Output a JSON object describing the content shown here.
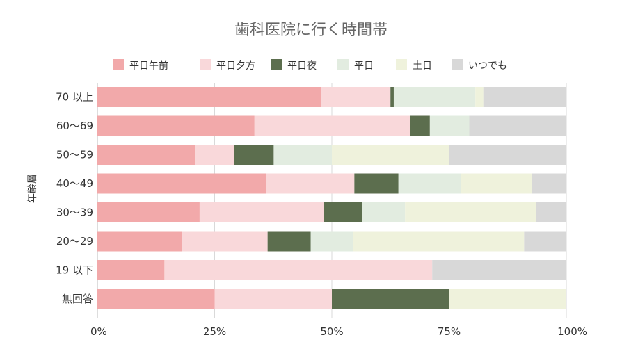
{
  "chart_data": {
    "type": "bar",
    "orientation": "horizontal",
    "stacked": true,
    "title": "歯科医院に行く時間帯",
    "ylabel": "年齢層",
    "xlabel": "",
    "xlim": [
      0,
      100
    ],
    "x_ticks": [
      "0%",
      "25%",
      "50%",
      "75%",
      "100%"
    ],
    "grid": true,
    "legend_position": "top",
    "categories": [
      "70 以上",
      "60～69",
      "50～59",
      "40～49",
      "30～39",
      "20～29",
      "19 以下",
      "無回答"
    ],
    "series": [
      {
        "name": "平日午前",
        "color": "#f2a9aa",
        "values": [
          47.7,
          33.5,
          20.8,
          36.0,
          21.8,
          18.0,
          14.3,
          25.0
        ]
      },
      {
        "name": "平日夕方",
        "color": "#f9d8da",
        "values": [
          14.8,
          33.2,
          8.4,
          18.8,
          26.5,
          18.3,
          57.1,
          25.0
        ]
      },
      {
        "name": "平日夜",
        "color": "#5c6e4e",
        "values": [
          0.7,
          4.2,
          8.4,
          9.4,
          8.1,
          9.2,
          0,
          25.0
        ]
      },
      {
        "name": "平日",
        "color": "#e2ece0",
        "values": [
          17.4,
          8.4,
          12.4,
          13.3,
          9.2,
          9.0,
          0,
          0
        ]
      },
      {
        "name": "土日",
        "color": "#eff2dc",
        "values": [
          1.7,
          0,
          25.0,
          15.1,
          28.0,
          36.5,
          0,
          25.0
        ]
      },
      {
        "name": "いつでも",
        "color": "#d8d8d8",
        "values": [
          17.7,
          20.7,
          25.0,
          7.4,
          6.4,
          9.0,
          28.6,
          0
        ]
      }
    ]
  }
}
